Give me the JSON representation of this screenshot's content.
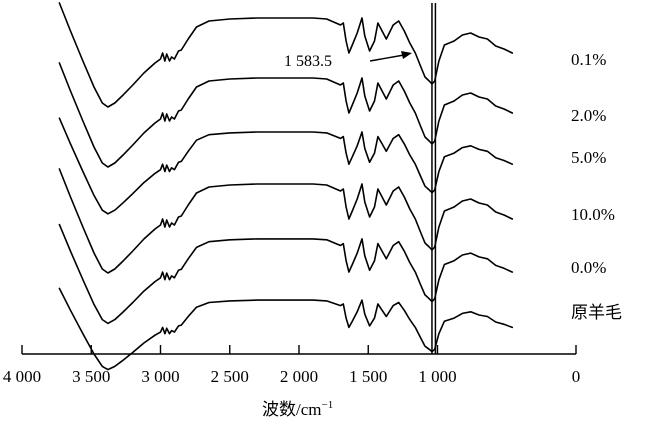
{
  "chart_data": {
    "type": "line",
    "title": "",
    "xlabel": "波数/cm",
    "xlabel_superscript": "−1",
    "ylabel": "",
    "xlim": [
      4000,
      0
    ],
    "x_reversed": true,
    "grid": false,
    "xticks": [
      {
        "value": 4000,
        "label": "4 000"
      },
      {
        "value": 3500,
        "label": "3 500"
      },
      {
        "value": 3000,
        "label": "3 000"
      },
      {
        "value": 2500,
        "label": "2 500"
      },
      {
        "value": 2000,
        "label": "2 000"
      },
      {
        "value": 1500,
        "label": "1 500"
      },
      {
        "value": 1000,
        "label": "1 000"
      },
      {
        "value": 0,
        "label": "0"
      }
    ],
    "vertical_markers": [
      1040,
      1015
    ],
    "annotation": {
      "text": "1 583.5",
      "x": 1583.5
    },
    "series": [
      {
        "name": "0.1%",
        "label_x": 50
      },
      {
        "name": "2.0%",
        "label_x": 50
      },
      {
        "name": "5.0%",
        "label_x": 50
      },
      {
        "name": "10.0%",
        "label_x": 50
      },
      {
        "name": "0.0%",
        "label_x": 50
      },
      {
        "name": "原羊毛",
        "label_x": 50
      }
    ]
  }
}
